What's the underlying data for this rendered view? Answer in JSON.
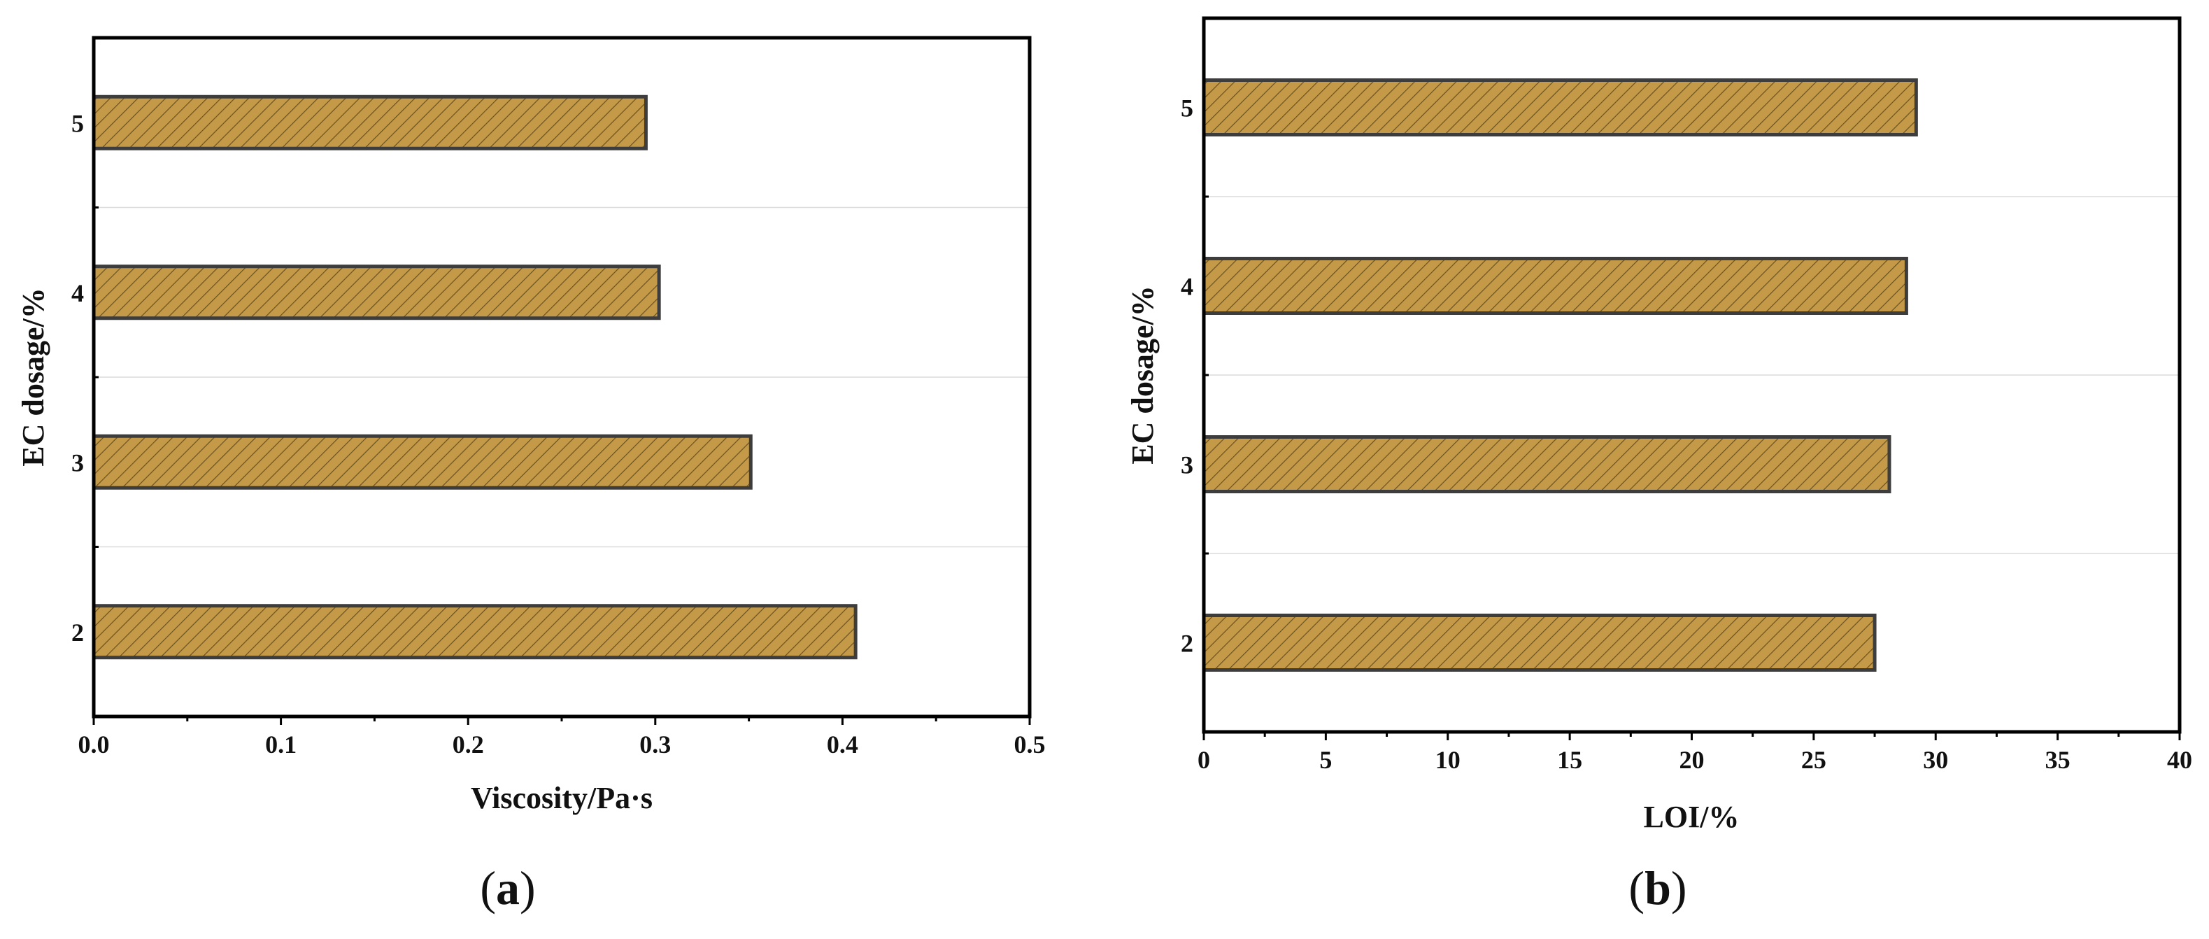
{
  "chart_data": [
    {
      "type": "bar",
      "orientation": "horizontal",
      "panel_label": "a",
      "xlabel": "Viscosity/Pa·s",
      "ylabel": "EC dosage/%",
      "categories": [
        "2",
        "3",
        "4",
        "5"
      ],
      "values": [
        0.407,
        0.351,
        0.302,
        0.295
      ],
      "xlim": [
        0,
        0.5
      ],
      "xticks": [
        "0.0",
        "0.1",
        "0.2",
        "0.3",
        "0.4",
        "0.5"
      ],
      "grid": true,
      "legend": "none"
    },
    {
      "type": "bar",
      "orientation": "horizontal",
      "panel_label": "b",
      "xlabel": "LOI/%",
      "ylabel": "EC dosage/%",
      "categories": [
        "2",
        "3",
        "4",
        "5"
      ],
      "values": [
        27.5,
        28.1,
        28.8,
        29.2
      ],
      "xlim": [
        0,
        40
      ],
      "xticks": [
        "0",
        "5",
        "10",
        "15",
        "20",
        "25",
        "30",
        "35",
        "40"
      ],
      "grid": true,
      "legend": "none"
    }
  ],
  "colors": {
    "bar_fill": "#c49a48",
    "bar_stroke": "#3d3d3d",
    "hatch": "#6b5120",
    "axis": "#000000",
    "grid": "#dcdcdc"
  }
}
